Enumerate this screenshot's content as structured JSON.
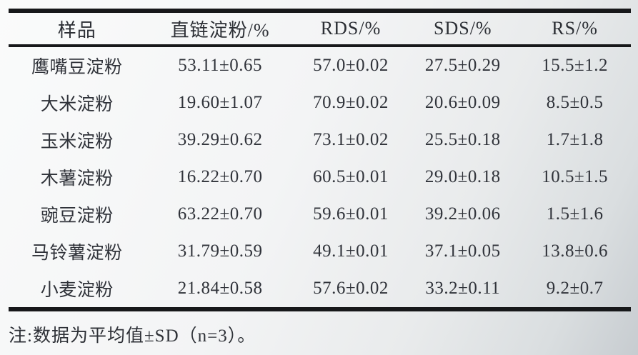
{
  "table": {
    "columns": [
      "样品",
      "直链淀粉/%",
      "RDS/%",
      "SDS/%",
      "RS/%"
    ],
    "rows": [
      [
        "鹰嘴豆淀粉",
        "53.11±0.65",
        "57.0±0.02",
        "27.5±0.29",
        "15.5±1.2"
      ],
      [
        "大米淀粉",
        "19.60±1.07",
        "70.9±0.02",
        "20.6±0.09",
        "8.5±0.5"
      ],
      [
        "玉米淀粉",
        "39.29±0.62",
        "73.1±0.02",
        "25.5±0.18",
        "1.7±1.8"
      ],
      [
        "木薯淀粉",
        "16.22±0.70",
        "60.5±0.01",
        "29.0±0.18",
        "10.5±1.5"
      ],
      [
        "豌豆淀粉",
        "63.22±0.70",
        "59.6±0.01",
        "39.2±0.06",
        "1.5±1.6"
      ],
      [
        "马铃薯淀粉",
        "31.79±0.59",
        "49.1±0.01",
        "37.1±0.05",
        "13.8±0.6"
      ],
      [
        "小麦淀粉",
        "21.84±0.58",
        "57.6±0.02",
        "33.2±0.11",
        "9.2±0.7"
      ]
    ],
    "footnote": "注:数据为平均值±SD（n=3）。"
  },
  "colors": {
    "text": "#2e3137",
    "rule": "#17181a",
    "page_background": "#f3f4f5"
  },
  "chart_data": {
    "type": "table",
    "title": "",
    "columns": [
      "样品",
      "直链淀粉/%",
      "RDS/%",
      "SDS/%",
      "RS/%"
    ],
    "rows": [
      [
        "鹰嘴豆淀粉",
        "53.11±0.65",
        "57.0±0.02",
        "27.5±0.29",
        "15.5±1.2"
      ],
      [
        "大米淀粉",
        "19.60±1.07",
        "70.9±0.02",
        "20.6±0.09",
        "8.5±0.5"
      ],
      [
        "玉米淀粉",
        "39.29±0.62",
        "73.1±0.02",
        "25.5±0.18",
        "1.7±1.8"
      ],
      [
        "木薯淀粉",
        "16.22±0.70",
        "60.5±0.01",
        "29.0±0.18",
        "10.5±1.5"
      ],
      [
        "豌豆淀粉",
        "63.22±0.70",
        "59.6±0.01",
        "39.2±0.06",
        "1.5±1.6"
      ],
      [
        "马铃薯淀粉",
        "31.79±0.59",
        "49.1±0.01",
        "37.1±0.05",
        "13.8±0.6"
      ],
      [
        "小麦淀粉",
        "21.84±0.58",
        "57.6±0.02",
        "33.2±0.11",
        "9.2±0.7"
      ]
    ],
    "footnote": "注:数据为平均值±SD（n=3）。"
  }
}
